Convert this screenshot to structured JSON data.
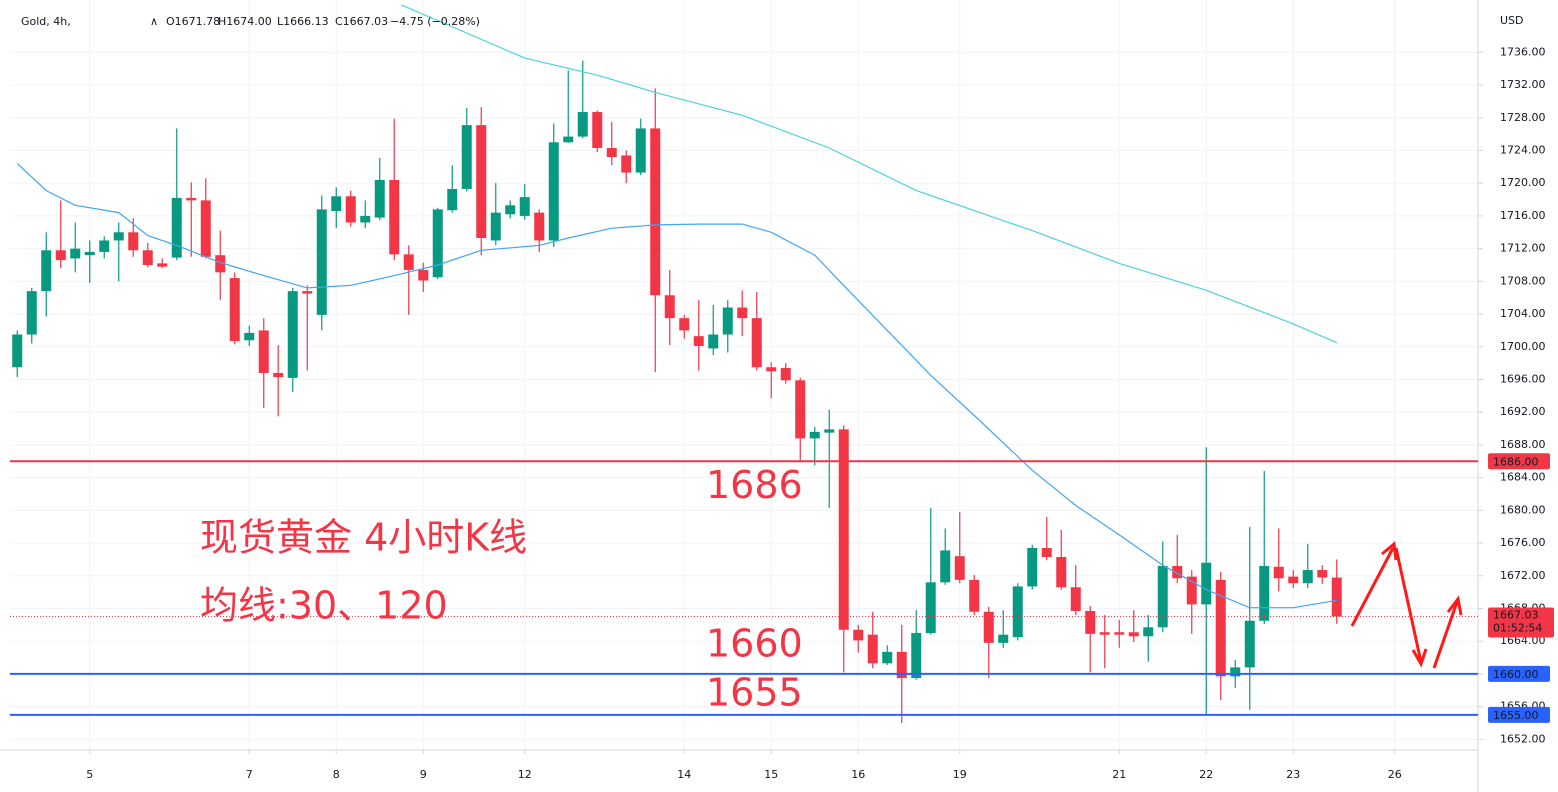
{
  "chart_data": {
    "type": "candlestick",
    "symbol": "Gold, 4h,",
    "ohlc_header": [
      "O1671.78",
      "H1674.00",
      "L1666.13",
      "C1667.03",
      "−4.75 (−0.28%)"
    ],
    "currency": "USD",
    "up_color": "#089981",
    "down_color": "#f23645",
    "open": [
      1697.5,
      1701.5,
      1706.8,
      1711.8,
      1710.8,
      1711.2,
      1711.6,
      1713,
      1714,
      1711.8,
      1710.2,
      1710.9,
      1718.2,
      1717.9,
      1711.2,
      1708.4,
      1700.8,
      1702,
      1696.8,
      1696.2,
      1706.8,
      1703.9,
      1716.6,
      1718.4,
      1715.2,
      1715.8,
      1720.4,
      1711.3,
      1709.4,
      1708.5,
      1716.7,
      1719.3,
      1727.1,
      1713,
      1716.2,
      1716,
      1716.4,
      1713,
      1725,
      1725.7,
      1728.7,
      1724.3,
      1723.4,
      1721.3,
      1726.7,
      1706.3,
      1703.5,
      1701.3,
      1699.8,
      1701.5,
      1704.8,
      1703.5,
      1697.5,
      1697.4,
      1695.9,
      1688.8,
      1689.5,
      1689.9,
      1665.4,
      1664.8,
      1661.3,
      1662.7,
      1659.5,
      1665,
      1671.2,
      1674.4,
      1671.5,
      1667.6,
      1663.8,
      1664.5,
      1670.7,
      1675.4,
      1674.3,
      1670.6,
      1667.7,
      1665.1,
      1665.1,
      1665.1,
      1664.6,
      1665.7,
      1673.2,
      1671.9,
      1668.5,
      1671.5,
      1659.7,
      1660.8,
      1666.5,
      1673.1,
      1671.9,
      1671.1,
      1672.7,
      1671.78
    ],
    "high": [
      1702,
      1707.2,
      1714,
      1717.9,
      1715.2,
      1713,
      1713.5,
      1715.2,
      1715.7,
      1712.7,
      1710.8,
      1726.7,
      1720.1,
      1720.6,
      1714.2,
      1709.1,
      1702.6,
      1703.5,
      1700.2,
      1707.2,
      1707.5,
      1718.5,
      1719.5,
      1719.1,
      1717.9,
      1723.1,
      1727.9,
      1712.4,
      1710.3,
      1717,
      1722.2,
      1729.2,
      1729.3,
      1720,
      1717.9,
      1719.9,
      1716.8,
      1727.3,
      1733.8,
      1735,
      1728.9,
      1727.5,
      1724,
      1727.9,
      1731.6,
      1709.4,
      1703.9,
      1705.7,
      1705.1,
      1705.7,
      1706.9,
      1706.7,
      1698.1,
      1698,
      1696.2,
      1690.2,
      1692.3,
      1690.4,
      1666,
      1667.6,
      1663.5,
      1666,
      1667.8,
      1680.3,
      1677.8,
      1679.8,
      1672.1,
      1668.2,
      1667.8,
      1671.1,
      1675.8,
      1679.2,
      1677.6,
      1673.3,
      1668.3,
      1667.2,
      1666.6,
      1667.8,
      1667.2,
      1676.2,
      1677,
      1672.7,
      1687.7,
      1672.5,
      1661.7,
      1678,
      1684.8,
      1677.8,
      1672.7,
      1675.9,
      1673.3,
      1674.0
    ],
    "low": [
      1696.3,
      1700.4,
      1703.7,
      1709.6,
      1709.1,
      1707.8,
      1710.8,
      1708,
      1711,
      1709.7,
      1709.6,
      1710.6,
      1711,
      1710.8,
      1705.7,
      1700.3,
      1700.1,
      1692.5,
      1691.5,
      1694.5,
      1697.1,
      1702,
      1714.5,
      1714.7,
      1714.5,
      1715.5,
      1710.6,
      1703.9,
      1706.7,
      1708.3,
      1716.4,
      1719,
      1711.2,
      1712.4,
      1715.7,
      1715.5,
      1711.6,
      1712.2,
      1724.9,
      1725.5,
      1723.8,
      1722.2,
      1720,
      1721,
      1696.9,
      1700.2,
      1701,
      1697.1,
      1699,
      1699.3,
      1701.3,
      1697.1,
      1693.7,
      1695.5,
      1686.1,
      1685.5,
      1680.3,
      1660.2,
      1662.6,
      1660.7,
      1661.1,
      1654,
      1659.3,
      1664.8,
      1670.9,
      1671.1,
      1667.2,
      1659.5,
      1663.2,
      1664.1,
      1670.3,
      1673.9,
      1670.3,
      1667.2,
      1660.2,
      1660.7,
      1663.2,
      1663.9,
      1661.5,
      1665.1,
      1671.1,
      1664.9,
      1654.9,
      1656.8,
      1658.3,
      1655.6,
      1666.1,
      1670.1,
      1670.5,
      1670.5,
      1671,
      1666.13
    ],
    "close": [
      1701.5,
      1706.8,
      1711.8,
      1710.6,
      1712,
      1711.6,
      1713,
      1714,
      1711.8,
      1710,
      1709.8,
      1718.2,
      1717.9,
      1711,
      1709.1,
      1700.7,
      1701.7,
      1696.8,
      1696.3,
      1706.8,
      1706.5,
      1716.8,
      1718.4,
      1715.2,
      1716,
      1720.4,
      1711.3,
      1709.4,
      1708.1,
      1716.8,
      1719.3,
      1727.1,
      1713.3,
      1716.4,
      1717.3,
      1718.3,
      1713,
      1725,
      1725.7,
      1728.7,
      1724.3,
      1723.2,
      1721.3,
      1726.7,
      1706.3,
      1703.5,
      1702,
      1700.1,
      1701.5,
      1704.8,
      1703.5,
      1697.5,
      1697,
      1695.9,
      1688.8,
      1689.6,
      1689.9,
      1665.4,
      1664.1,
      1661.3,
      1662.7,
      1659.5,
      1665,
      1671.2,
      1675.1,
      1671.5,
      1667.6,
      1663.8,
      1664.8,
      1670.7,
      1675.4,
      1674.3,
      1670.6,
      1667.7,
      1664.9,
      1664.8,
      1664.8,
      1664.6,
      1665.7,
      1673.2,
      1671.7,
      1668.5,
      1673.6,
      1659.7,
      1660.8,
      1666.5,
      1673.2,
      1671.7,
      1671.1,
      1672.7,
      1671.8,
      1667.03
    ],
    "series": [
      {
        "color": "#42a5f5",
        "x": [
          0,
          2,
          4,
          7,
          9,
          11,
          14,
          17,
          20,
          23,
          26,
          29,
          32,
          36,
          38,
          41,
          44,
          47,
          50,
          52,
          55,
          57,
          60,
          63,
          66,
          70,
          73,
          76,
          79,
          82,
          85,
          88,
          91
        ],
        "values": [
          1722.4,
          1719.1,
          1717.3,
          1716.4,
          1713.6,
          1712.4,
          1710.3,
          1708.7,
          1707.2,
          1707.5,
          1708.7,
          1710,
          1711.8,
          1712.4,
          1713.3,
          1714.5,
          1714.9,
          1715,
          1715,
          1714,
          1711.2,
          1707.5,
          1702,
          1696.5,
          1691.6,
          1684.9,
          1680.6,
          1677,
          1673.3,
          1670.3,
          1668.1,
          1668.1,
          1669
        ]
      },
      {
        "color": "#4dd0e1",
        "x": [
          26.5,
          35,
          40,
          44,
          50,
          56,
          62,
          70,
          76,
          82,
          88,
          91
        ],
        "values": [
          1741.8,
          1735.3,
          1733.2,
          1731.1,
          1728.3,
          1724.3,
          1719.1,
          1714.2,
          1710.2,
          1706.9,
          1702.8,
          1700.5
        ]
      }
    ],
    "xlim": [
      -0.5,
      100.5
    ],
    "xticks": [
      {
        "value": 5,
        "label": "5"
      },
      {
        "value": 16,
        "label": "7"
      },
      {
        "value": 22,
        "label": "8"
      },
      {
        "value": 28,
        "label": "9"
      },
      {
        "value": 35,
        "label": "12"
      },
      {
        "value": 46,
        "label": "14"
      },
      {
        "value": 52,
        "label": "15"
      },
      {
        "value": 58,
        "label": "16"
      },
      {
        "value": 65,
        "label": "19"
      },
      {
        "value": 76,
        "label": "21"
      },
      {
        "value": 82,
        "label": "22"
      },
      {
        "value": 88,
        "label": "23"
      },
      {
        "value": 95,
        "label": "26"
      }
    ],
    "ylim": [
      1650.7,
      1742.4
    ],
    "yticks": [
      {
        "value": 1652,
        "label": "1652.00"
      },
      {
        "value": 1656,
        "label": "1656.00"
      },
      {
        "value": 1660,
        "label": "1660.00"
      },
      {
        "value": 1664,
        "label": "1664.00"
      },
      {
        "value": 1668,
        "label": "1668.00"
      },
      {
        "value": 1672,
        "label": "1672.00"
      },
      {
        "value": 1676,
        "label": "1676.00"
      },
      {
        "value": 1680,
        "label": "1680.00"
      },
      {
        "value": 1684,
        "label": "1684.00"
      },
      {
        "value": 1688,
        "label": "1688.00"
      },
      {
        "value": 1692,
        "label": "1692.00"
      },
      {
        "value": 1696,
        "label": "1696.00"
      },
      {
        "value": 1700,
        "label": "1700.00"
      },
      {
        "value": 1704,
        "label": "1704.00"
      },
      {
        "value": 1708,
        "label": "1708.00"
      },
      {
        "value": 1712,
        "label": "1712.00"
      },
      {
        "value": 1716,
        "label": "1716.00"
      },
      {
        "value": 1720,
        "label": "1720.00"
      },
      {
        "value": 1724,
        "label": "1724.00"
      },
      {
        "value": 1728,
        "label": "1728.00"
      },
      {
        "value": 1732,
        "label": "1732.00"
      },
      {
        "value": 1736,
        "label": "1736.00"
      }
    ],
    "grid": true,
    "levels": [
      {
        "value": 1686,
        "label": "1686.00",
        "color": "#f23645"
      },
      {
        "value": 1660,
        "label": "1660.00",
        "color": "#2962ff"
      },
      {
        "value": 1655,
        "label": "1655.00",
        "color": "#2962ff"
      }
    ],
    "last_price": {
      "value": 1667.03,
      "label": "1667.03",
      "countdown": "01:52:54",
      "color": "#f23645"
    },
    "annotations": [
      {
        "text": "1686",
        "value": 1686
      },
      {
        "text": "1660",
        "value": 1660
      },
      {
        "text": "1655",
        "value": 1655
      }
    ],
    "caption": [
      "现货黄金 4小时K线",
      "均线:30、120"
    ]
  }
}
